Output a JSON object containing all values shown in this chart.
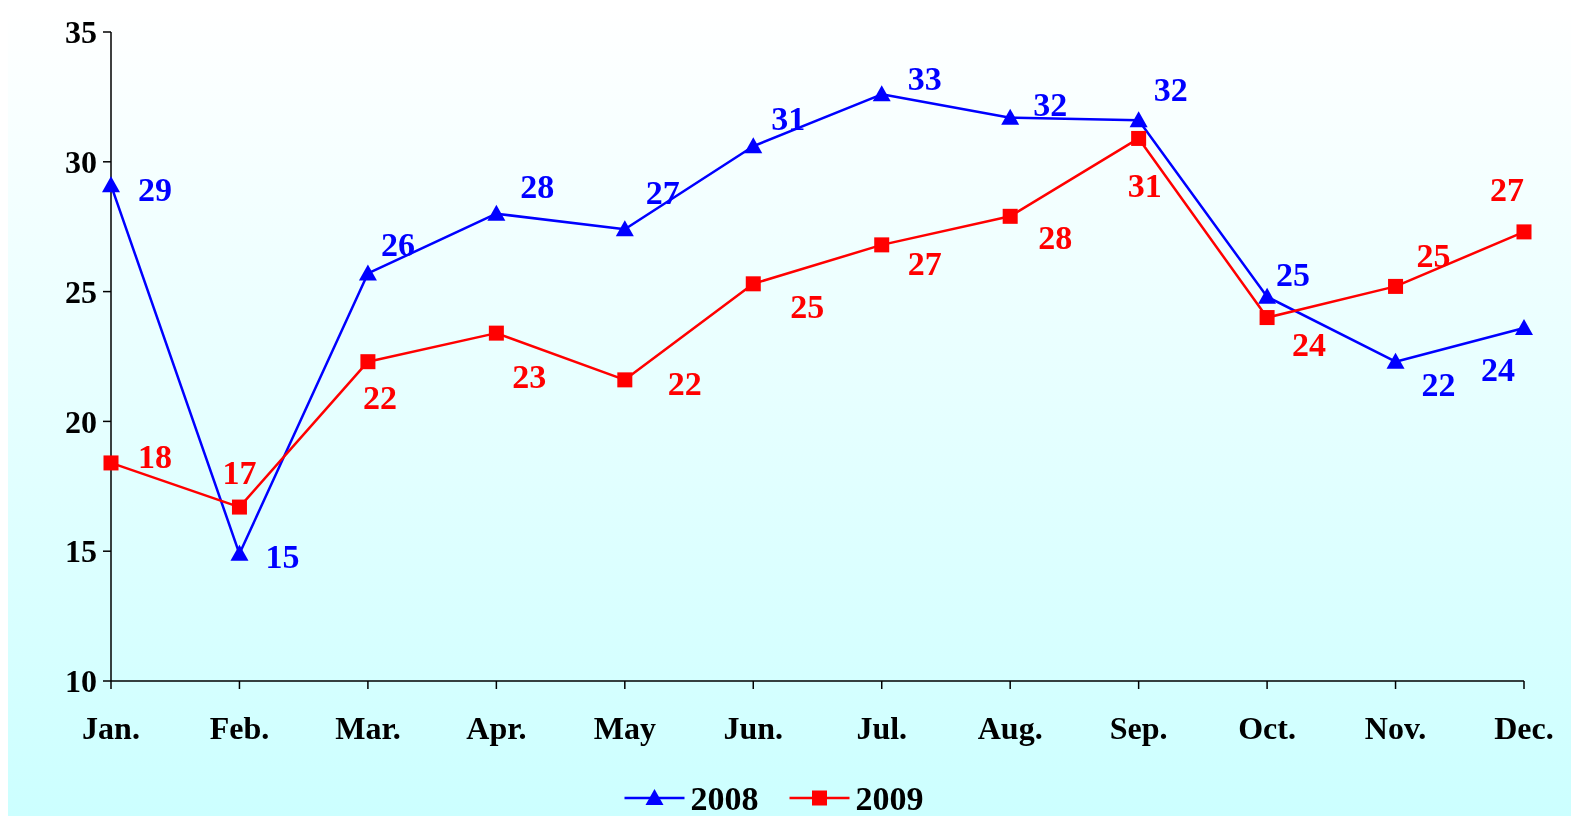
{
  "chart_data": {
    "type": "line",
    "categories": [
      "Jan.",
      "Feb.",
      "Mar.",
      "Apr.",
      "May",
      "Jun.",
      "Jul.",
      "Aug.",
      "Sep.",
      "Oct.",
      "Nov.",
      "Dec."
    ],
    "series": [
      {
        "name": "2008",
        "color": "#0000ff",
        "marker": "triangle",
        "values": [
          29.1,
          14.9,
          25.7,
          28.0,
          27.4,
          30.6,
          32.6,
          31.7,
          31.6,
          24.8,
          22.3,
          23.6
        ],
        "value_labels": [
          "29",
          "15",
          "26",
          "28",
          "27",
          "31",
          "33",
          "32",
          "32",
          "25",
          "22",
          "24"
        ]
      },
      {
        "name": "2009",
        "color": "#ff0000",
        "marker": "square",
        "values": [
          18.4,
          16.7,
          22.3,
          23.4,
          21.6,
          25.3,
          26.8,
          27.9,
          30.9,
          24.0,
          25.2,
          27.3
        ],
        "value_labels": [
          "18",
          "17",
          "22",
          "23",
          "22",
          "25",
          "27",
          "28",
          "31",
          "24",
          "25",
          "27"
        ]
      }
    ],
    "ylim": [
      10,
      35
    ],
    "yticks": [
      10,
      15,
      20,
      25,
      30,
      35
    ],
    "grid": false,
    "legend": "bottom"
  }
}
